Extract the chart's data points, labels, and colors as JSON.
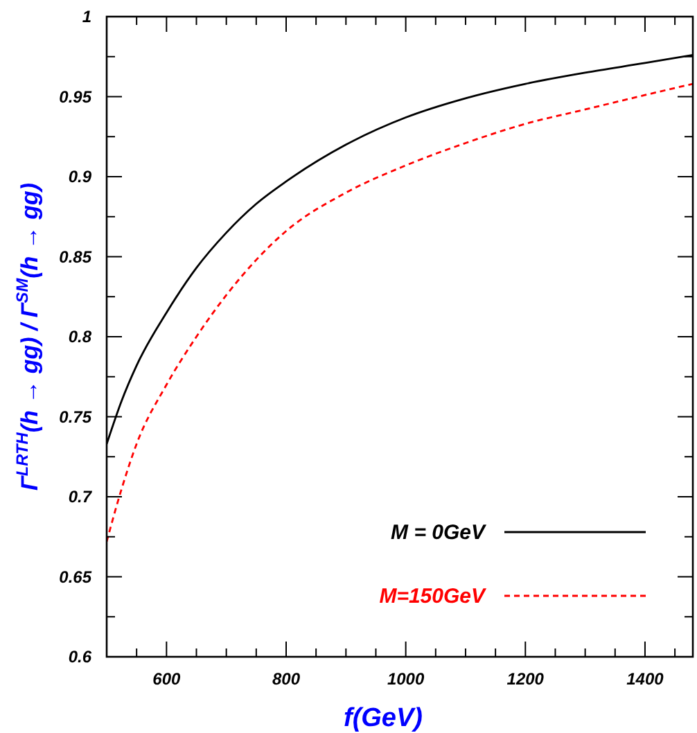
{
  "chart_data": {
    "type": "line",
    "xlabel": "f(GeV)",
    "ylabel": "Γ$^{LRTH}$(h → gg) / Γ$^{SM}$(h → gg)",
    "x": [
      500,
      525,
      550,
      600,
      650,
      700,
      750,
      800,
      900,
      1000,
      1100,
      1200,
      1300,
      1400,
      1480
    ],
    "series": [
      {
        "name": "M = 0GeV",
        "color": "#000000",
        "line_style": "solid",
        "values": [
          0.733,
          0.76,
          0.782,
          0.815,
          0.843,
          0.865,
          0.883,
          0.897,
          0.92,
          0.937,
          0.949,
          0.958,
          0.965,
          0.971,
          0.976
        ]
      },
      {
        "name": "M=150GeV",
        "color": "#ff0000",
        "line_style": "dashed",
        "values": [
          0.672,
          0.705,
          0.733,
          0.77,
          0.8,
          0.826,
          0.848,
          0.866,
          0.89,
          0.907,
          0.921,
          0.933,
          0.942,
          0.951,
          0.958
        ]
      }
    ],
    "xlim": [
      500,
      1480
    ],
    "xticks": [
      {
        "value": 550,
        "label": null
      },
      600,
      {
        "value": 650,
        "label": null
      },
      {
        "value": 700,
        "label": null
      },
      {
        "value": 750,
        "label": null
      },
      800,
      {
        "value": 850,
        "label": null
      },
      {
        "value": 900,
        "label": null
      },
      {
        "value": 950,
        "label": null
      },
      1000,
      {
        "value": 1050,
        "label": null
      },
      {
        "value": 1100,
        "label": null
      },
      {
        "value": 1150,
        "label": null
      },
      1200,
      {
        "value": 1250,
        "label": null
      },
      {
        "value": 1300,
        "label": null
      },
      {
        "value": 1350,
        "label": null
      },
      1400,
      {
        "value": 1450,
        "label": null
      }
    ],
    "ylim": [
      0.6,
      1
    ],
    "yticks": [
      0.6,
      {
        "value": 0.625,
        "label": null
      },
      0.65,
      {
        "value": 0.675,
        "label": null
      },
      0.7,
      {
        "value": 0.725,
        "label": null
      },
      0.75,
      {
        "value": 0.775,
        "label": null
      },
      0.8,
      {
        "value": 0.825,
        "label": null
      },
      0.85,
      {
        "value": 0.875,
        "label": null
      },
      0.9,
      {
        "value": 0.925,
        "label": null
      },
      0.95,
      {
        "value": 0.975,
        "label": null
      },
      1
    ],
    "grid": false,
    "legend": "bottom right",
    "marker": "none"
  }
}
